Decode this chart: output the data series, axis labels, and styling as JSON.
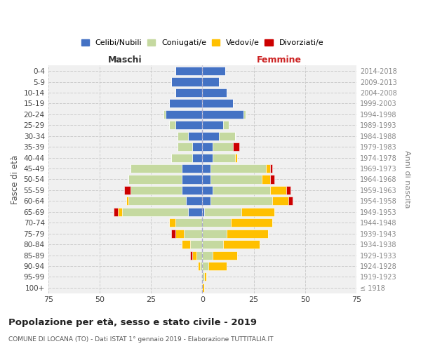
{
  "age_groups": [
    "100+",
    "95-99",
    "90-94",
    "85-89",
    "80-84",
    "75-79",
    "70-74",
    "65-69",
    "60-64",
    "55-59",
    "50-54",
    "45-49",
    "40-44",
    "35-39",
    "30-34",
    "25-29",
    "20-24",
    "15-19",
    "10-14",
    "5-9",
    "0-4"
  ],
  "birth_years": [
    "≤ 1918",
    "1919-1923",
    "1924-1928",
    "1929-1933",
    "1934-1938",
    "1939-1943",
    "1944-1948",
    "1949-1953",
    "1954-1958",
    "1959-1963",
    "1964-1968",
    "1969-1973",
    "1974-1978",
    "1979-1983",
    "1984-1988",
    "1989-1993",
    "1994-1998",
    "1999-2003",
    "2004-2008",
    "2009-2013",
    "2014-2018"
  ],
  "male_celibi": [
    0,
    0,
    0,
    0,
    0,
    0,
    0,
    7,
    8,
    10,
    10,
    10,
    5,
    5,
    7,
    13,
    18,
    16,
    13,
    15,
    13
  ],
  "male_coniugati": [
    0,
    0,
    1,
    3,
    6,
    9,
    13,
    32,
    28,
    25,
    26,
    25,
    10,
    7,
    5,
    3,
    1,
    0,
    0,
    0,
    0
  ],
  "male_vedovi": [
    0,
    0,
    1,
    2,
    4,
    4,
    3,
    2,
    1,
    0,
    0,
    0,
    0,
    0,
    0,
    0,
    0,
    0,
    0,
    0,
    0
  ],
  "male_divorziati": [
    0,
    0,
    0,
    1,
    0,
    2,
    0,
    2,
    0,
    3,
    0,
    0,
    0,
    0,
    0,
    0,
    0,
    0,
    0,
    0,
    0
  ],
  "female_nubili": [
    0,
    0,
    0,
    0,
    0,
    0,
    0,
    1,
    4,
    5,
    4,
    4,
    5,
    5,
    8,
    10,
    20,
    15,
    12,
    8,
    11
  ],
  "female_coniugate": [
    0,
    1,
    3,
    5,
    10,
    12,
    14,
    18,
    30,
    28,
    25,
    27,
    11,
    10,
    8,
    3,
    1,
    0,
    0,
    0,
    0
  ],
  "female_vedove": [
    1,
    1,
    9,
    12,
    18,
    20,
    20,
    16,
    8,
    8,
    4,
    2,
    1,
    0,
    0,
    0,
    0,
    0,
    0,
    0,
    0
  ],
  "female_divorziate": [
    0,
    0,
    0,
    0,
    0,
    0,
    0,
    0,
    2,
    2,
    2,
    1,
    0,
    3,
    0,
    0,
    0,
    0,
    0,
    0,
    0
  ],
  "color_celibi": "#4472c4",
  "color_coniugati": "#c5d9a0",
  "color_vedovi": "#ffc000",
  "color_divorziati": "#cc0000",
  "title": "Popolazione per età, sesso e stato civile - 2019",
  "subtitle": "COMUNE DI LOCANA (TO) - Dati ISTAT 1° gennaio 2019 - Elaborazione TUTTITALIA.IT",
  "ylabel": "Fasce di età",
  "ylabel_right": "Anni di nascita",
  "label_maschi": "Maschi",
  "label_femmine": "Femmine",
  "legend_labels": [
    "Celibi/Nubili",
    "Coniugati/e",
    "Vedovi/e",
    "Divorziati/e"
  ],
  "xlim": 75,
  "bg_color": "#f0f0f0"
}
